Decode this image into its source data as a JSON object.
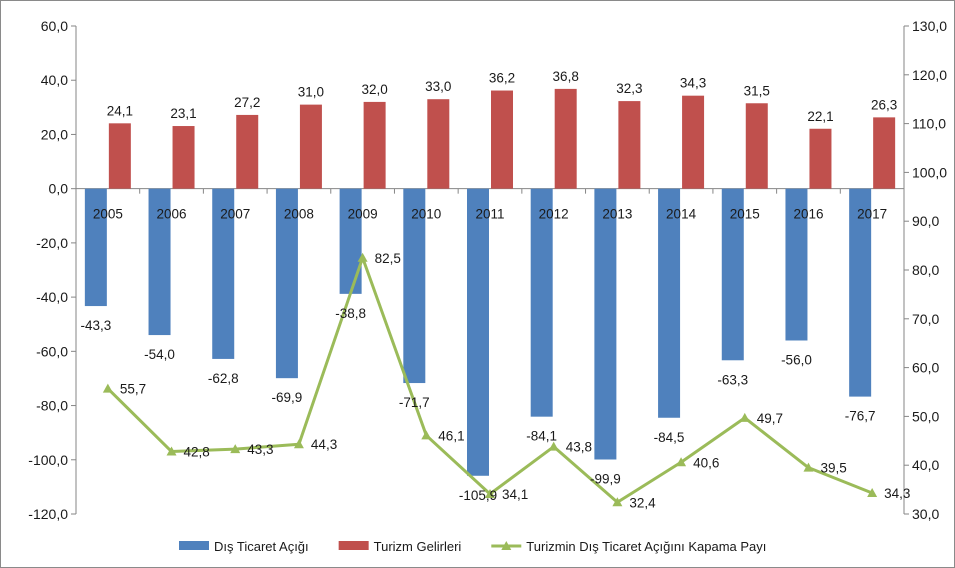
{
  "chart_data": {
    "type": "bar",
    "categories": [
      "2005",
      "2006",
      "2007",
      "2008",
      "2009",
      "2010",
      "2011",
      "2012",
      "2013",
      "2014",
      "2015",
      "2016",
      "2017"
    ],
    "series": [
      {
        "name": "Dış Ticaret Açığı",
        "kind": "bar",
        "axis": "left",
        "color": "#4f81bd",
        "values": [
          -43.3,
          -54.0,
          -62.8,
          -69.9,
          -38.8,
          -71.7,
          -105.9,
          -84.1,
          -99.9,
          -84.5,
          -63.3,
          -56.0,
          -76.7
        ],
        "labels": [
          "-43,3",
          "-54,0",
          "-62,8",
          "-69,9",
          "-38,8",
          "-71,7",
          "-105,9",
          "-84,1",
          "-99,9",
          "-84,5",
          "-63,3",
          "-56,0",
          "-76,7"
        ]
      },
      {
        "name": "Turizm Gelirleri",
        "kind": "bar",
        "axis": "left",
        "color": "#c0504d",
        "values": [
          24.1,
          23.1,
          27.2,
          31.0,
          32.0,
          33.0,
          36.2,
          36.8,
          32.3,
          34.3,
          31.5,
          22.1,
          26.3
        ],
        "labels": [
          "24,1",
          "23,1",
          "27,2",
          "31,0",
          "32,0",
          "33,0",
          "36,2",
          "36,8",
          "32,3",
          "34,3",
          "31,5",
          "22,1",
          "26,3"
        ]
      },
      {
        "name": "Turizmin Dış Ticaret Açığını Kapama Payı",
        "kind": "line",
        "axis": "right",
        "color": "#9bbb59",
        "values": [
          55.7,
          42.8,
          43.3,
          44.3,
          82.5,
          46.1,
          34.1,
          43.8,
          32.4,
          40.6,
          49.7,
          39.5,
          34.3
        ],
        "labels": [
          "55,7",
          "42,8",
          "43,3",
          "44,3",
          "82,5",
          "46,1",
          "34,1",
          "43,8",
          "32,4",
          "40,6",
          "49,7",
          "39,5",
          "34,3"
        ]
      }
    ],
    "y_left": {
      "ylim": [
        -120,
        60
      ],
      "ticks": [
        60,
        40,
        20,
        0,
        -20,
        -40,
        -60,
        -80,
        -100,
        -120
      ],
      "tick_labels": [
        "60,0",
        "40,0",
        "20,0",
        "0,0",
        "-20,0",
        "-40,0",
        "-60,0",
        "-80,0",
        "-100,0",
        "-120,0"
      ]
    },
    "y_right": {
      "ylim": [
        30,
        130
      ],
      "ticks": [
        130,
        120,
        110,
        100,
        90,
        80,
        70,
        60,
        50,
        40,
        30
      ],
      "tick_labels": [
        "130,0",
        "120,0",
        "110,0",
        "100,0",
        "90,0",
        "80,0",
        "70,0",
        "60,0",
        "50,0",
        "40,0",
        "30,0"
      ]
    },
    "grid": false,
    "legend_position": "bottom",
    "title": "",
    "xlabel": "",
    "ylabel": ""
  }
}
